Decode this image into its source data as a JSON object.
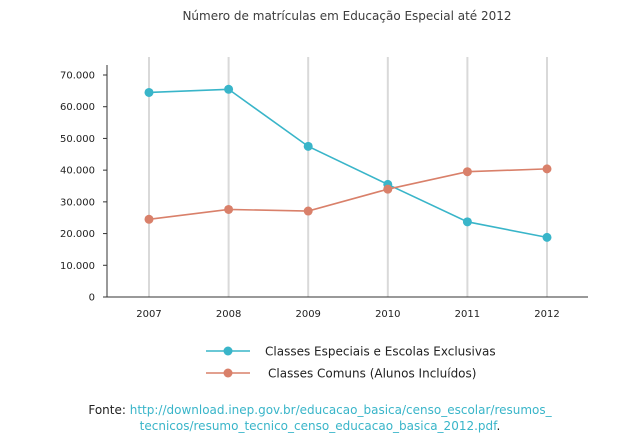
{
  "chart_data": {
    "type": "line",
    "title": "Número de matrículas em Educação Especial até 2012",
    "xlabel": "",
    "ylabel": "",
    "categories": [
      "2007",
      "2008",
      "2009",
      "2010",
      "2011",
      "2012"
    ],
    "y_ticks": [
      "0",
      "10.000",
      "20.000",
      "30.000",
      "40.000",
      "50.000",
      "60.000",
      "70.000"
    ],
    "ylim": [
      0,
      70000
    ],
    "grid": "vertical",
    "legend_position": "bottom",
    "series": [
      {
        "name": "Classes Especiais e Escolas Exclusivas",
        "color": "#39b5c9",
        "values": [
          64500,
          65500,
          47500,
          35500,
          23700,
          18800
        ]
      },
      {
        "name": "Classes Comuns (Alunos Incluídos)",
        "color": "#d9806a",
        "values": [
          24500,
          27600,
          27100,
          34000,
          39500,
          40400
        ]
      }
    ]
  },
  "source": {
    "label": "Fonte:",
    "link_line1": "http://download.inep.gov.br/educacao_basica/censo_escolar/resumos_",
    "link_line2": "tecnicos/resumo_tecnico_censo_educacao_basica_2012.pdf",
    "suffix": "."
  },
  "colors": {
    "axis": "#333333",
    "grid": "#d9d9d9"
  }
}
